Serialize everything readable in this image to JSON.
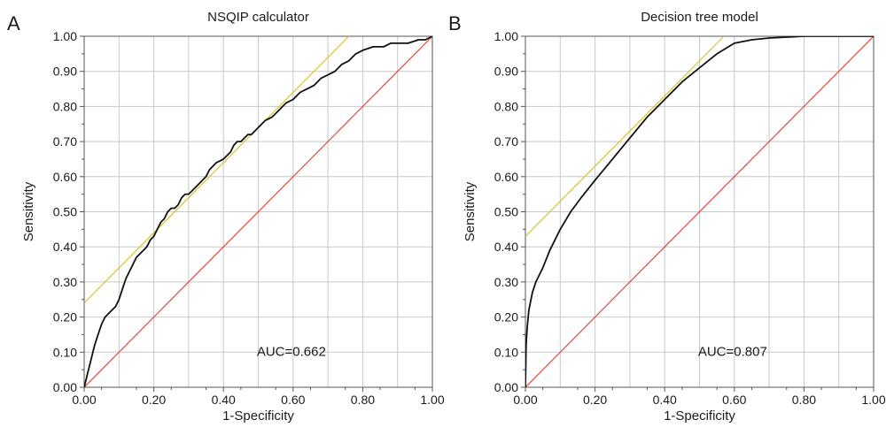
{
  "panels": [
    {
      "letter": "A",
      "title": "NSQIP calculator"
    },
    {
      "letter": "B",
      "title": "Decision tree model"
    }
  ],
  "chart_data": [
    {
      "type": "line",
      "title": "NSQIP calculator",
      "panel_label": "A",
      "xlabel": "1-Specificity",
      "ylabel": "Sensitivity",
      "xlim": [
        0,
        1
      ],
      "ylim": [
        0,
        1
      ],
      "xticks": [
        "0.00",
        "0.20",
        "0.40",
        "0.60",
        "0.80",
        "1.00"
      ],
      "yticks": [
        "0.00",
        "0.10",
        "0.20",
        "0.30",
        "0.40",
        "0.50",
        "0.60",
        "0.70",
        "0.80",
        "0.90",
        "1.00"
      ],
      "grid": true,
      "annotation": "AUC=0.662",
      "colors": {
        "roc": "#111111",
        "reference": "#e8483f",
        "tangent": "#d4c62a",
        "grid": "#c8c8c8"
      },
      "series": [
        {
          "role": "roc",
          "x": [
            0.0,
            0.005,
            0.01,
            0.015,
            0.02,
            0.03,
            0.04,
            0.05,
            0.06,
            0.07,
            0.08,
            0.09,
            0.1,
            0.11,
            0.12,
            0.13,
            0.14,
            0.15,
            0.16,
            0.17,
            0.18,
            0.19,
            0.2,
            0.21,
            0.22,
            0.23,
            0.24,
            0.25,
            0.26,
            0.27,
            0.28,
            0.29,
            0.3,
            0.31,
            0.32,
            0.33,
            0.34,
            0.35,
            0.36,
            0.37,
            0.38,
            0.39,
            0.4,
            0.41,
            0.42,
            0.43,
            0.44,
            0.45,
            0.46,
            0.47,
            0.48,
            0.49,
            0.5,
            0.52,
            0.54,
            0.56,
            0.58,
            0.6,
            0.62,
            0.64,
            0.66,
            0.68,
            0.7,
            0.72,
            0.74,
            0.76,
            0.78,
            0.8,
            0.83,
            0.86,
            0.88,
            0.9,
            0.93,
            0.96,
            0.98,
            1.0
          ],
          "y": [
            0.0,
            0.02,
            0.04,
            0.06,
            0.08,
            0.12,
            0.15,
            0.18,
            0.2,
            0.21,
            0.22,
            0.23,
            0.25,
            0.28,
            0.31,
            0.33,
            0.35,
            0.37,
            0.38,
            0.39,
            0.4,
            0.42,
            0.43,
            0.45,
            0.47,
            0.48,
            0.5,
            0.51,
            0.51,
            0.52,
            0.54,
            0.55,
            0.55,
            0.56,
            0.57,
            0.58,
            0.59,
            0.6,
            0.62,
            0.63,
            0.64,
            0.645,
            0.65,
            0.66,
            0.67,
            0.69,
            0.7,
            0.7,
            0.71,
            0.72,
            0.72,
            0.73,
            0.74,
            0.76,
            0.77,
            0.79,
            0.81,
            0.82,
            0.84,
            0.85,
            0.86,
            0.88,
            0.89,
            0.9,
            0.92,
            0.93,
            0.95,
            0.96,
            0.97,
            0.97,
            0.98,
            0.98,
            0.98,
            0.99,
            0.99,
            1.0
          ]
        },
        {
          "role": "reference",
          "x": [
            0,
            1
          ],
          "y": [
            0,
            1
          ]
        },
        {
          "role": "tangent",
          "x": [
            0,
            0.76
          ],
          "y": [
            0.24,
            1.0
          ]
        }
      ]
    },
    {
      "type": "line",
      "title": "Decision tree model",
      "panel_label": "B",
      "xlabel": "1-Specificity",
      "ylabel": "Sensitivity",
      "xlim": [
        0,
        1
      ],
      "ylim": [
        0,
        1
      ],
      "xticks": [
        "0.00",
        "0.20",
        "0.40",
        "0.60",
        "0.80",
        "1.00"
      ],
      "yticks": [
        "0.00",
        "0.10",
        "0.20",
        "0.30",
        "0.40",
        "0.50",
        "0.60",
        "0.70",
        "0.80",
        "0.90",
        "1.00"
      ],
      "grid": true,
      "annotation": "AUC=0.807",
      "colors": {
        "roc": "#111111",
        "reference": "#e8483f",
        "tangent": "#d4c62a",
        "grid": "#c8c8c8"
      },
      "series": [
        {
          "role": "roc",
          "x": [
            0.0,
            0.002,
            0.005,
            0.01,
            0.02,
            0.03,
            0.05,
            0.07,
            0.1,
            0.13,
            0.16,
            0.2,
            0.25,
            0.3,
            0.35,
            0.4,
            0.45,
            0.5,
            0.55,
            0.6,
            0.65,
            0.7,
            0.8,
            0.9,
            1.0
          ],
          "y": [
            0.0,
            0.12,
            0.17,
            0.22,
            0.27,
            0.3,
            0.34,
            0.39,
            0.45,
            0.5,
            0.54,
            0.59,
            0.65,
            0.71,
            0.77,
            0.82,
            0.87,
            0.91,
            0.95,
            0.98,
            0.99,
            0.995,
            1.0,
            1.0,
            1.0
          ]
        },
        {
          "role": "reference",
          "x": [
            0,
            1
          ],
          "y": [
            0,
            1
          ]
        },
        {
          "role": "tangent",
          "x": [
            0,
            0.57
          ],
          "y": [
            0.43,
            1.0
          ]
        }
      ]
    }
  ]
}
